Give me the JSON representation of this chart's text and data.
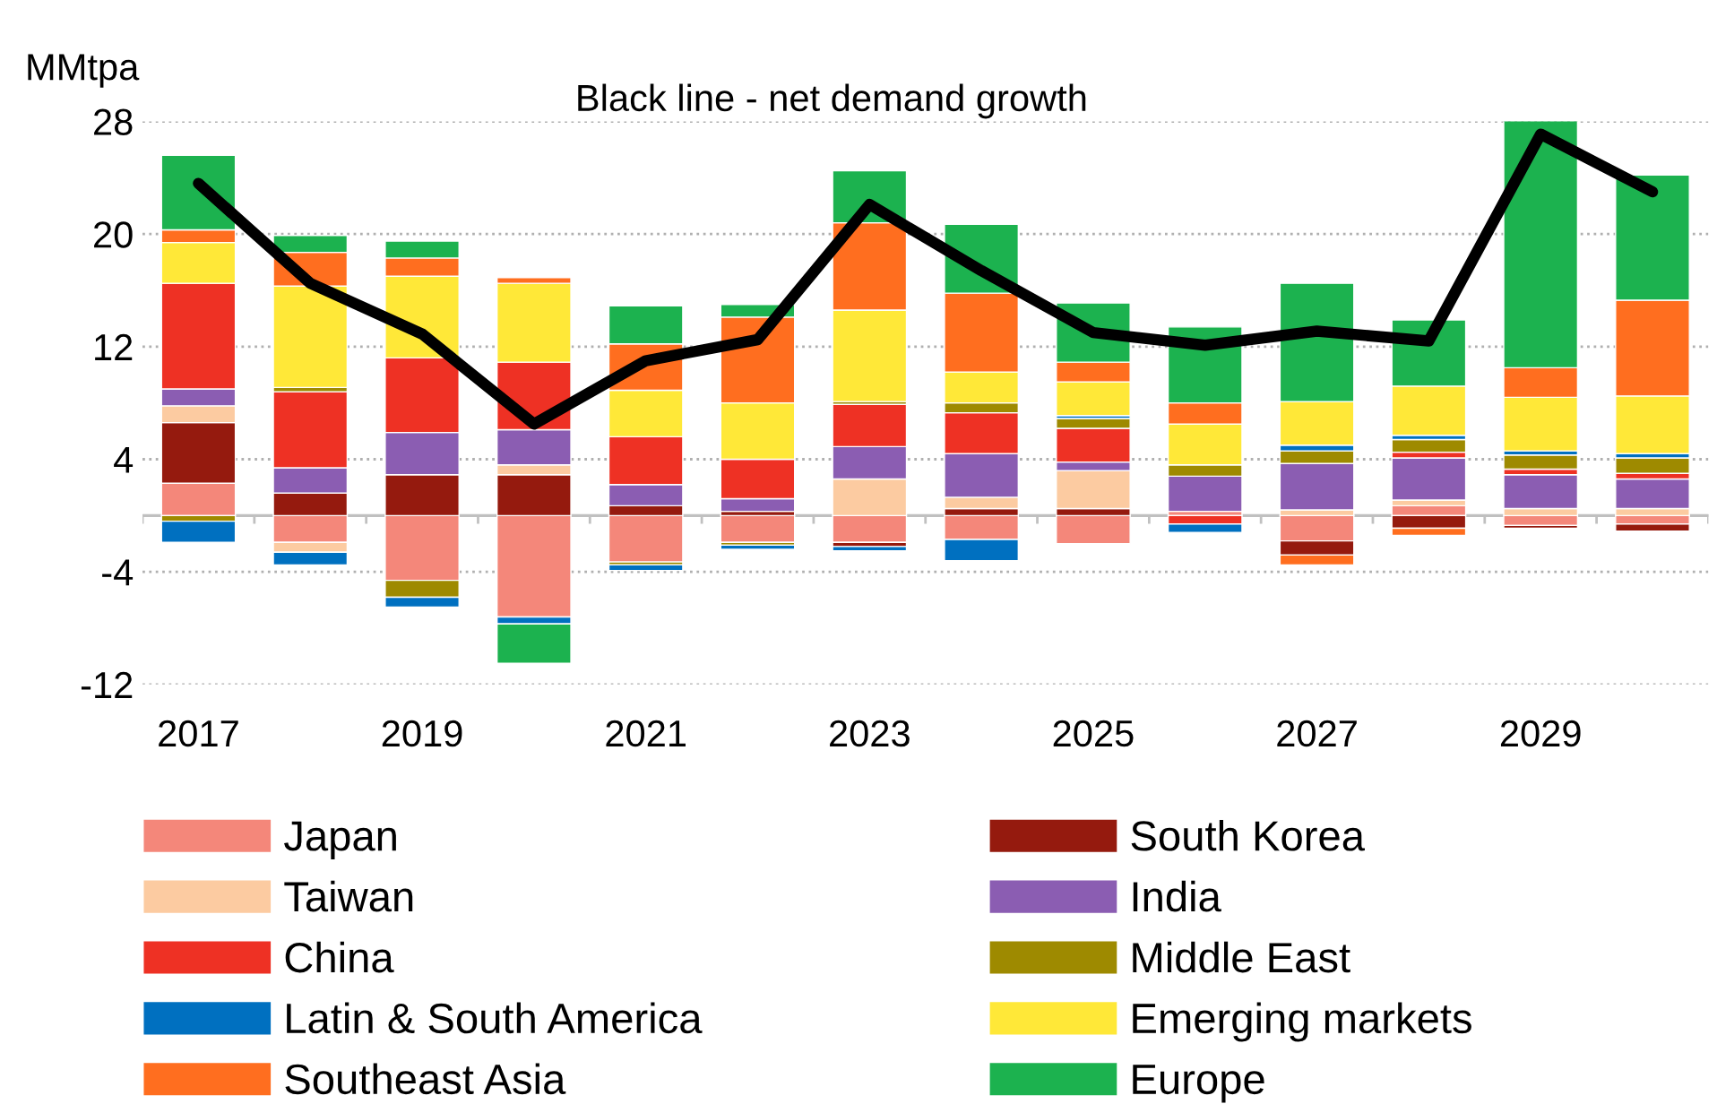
{
  "chart_data": {
    "type": "bar",
    "stacked": true,
    "title": "Black line - net demand growth",
    "ylabel": "MMtpa",
    "categories": [
      "2017",
      null,
      "2019",
      null,
      "2021",
      null,
      "2023",
      null,
      "2025",
      null,
      "2027",
      null,
      "2029",
      null
    ],
    "series": [
      {
        "name": "Japan",
        "color": "#f4877a",
        "values": [
          2.3,
          -1.9,
          -4.6,
          -7.2,
          -3.3,
          -1.9,
          -1.9,
          -1.7,
          -2.0,
          0.3,
          -1.8,
          0.7,
          -0.7,
          -0.6
        ]
      },
      {
        "name": "South Korea",
        "color": "#951a0e",
        "values": [
          4.3,
          1.6,
          2.9,
          2.9,
          0.7,
          0.3,
          -0.3,
          0.5,
          0.5,
          null,
          -1.0,
          -0.9,
          -0.2,
          -0.5
        ]
      },
      {
        "name": "Taiwan",
        "color": "#fccba1",
        "values": [
          1.2,
          -0.7,
          null,
          0.7,
          null,
          null,
          2.6,
          0.8,
          2.7,
          null,
          0.4,
          0.4,
          0.5,
          0.5
        ]
      },
      {
        "name": "India",
        "color": "#8b5db2",
        "values": [
          1.2,
          1.8,
          3.0,
          2.5,
          1.5,
          0.9,
          2.3,
          3.1,
          0.6,
          2.5,
          3.3,
          3.0,
          2.4,
          2.1
        ]
      },
      {
        "name": "China",
        "color": "#ee3124",
        "values": [
          7.5,
          5.4,
          5.3,
          4.8,
          3.4,
          2.8,
          3.0,
          2.9,
          2.4,
          -0.6,
          null,
          0.4,
          0.4,
          0.4
        ]
      },
      {
        "name": "Middle East",
        "color": "#9e8a00",
        "values": [
          -0.4,
          0.3,
          -1.2,
          null,
          -0.2,
          -0.2,
          0.2,
          0.7,
          0.7,
          0.8,
          0.9,
          0.9,
          1.0,
          1.1
        ]
      },
      {
        "name": "Latin & South America",
        "color": "#0070c0",
        "values": [
          -1.5,
          -0.9,
          -0.7,
          -0.5,
          -0.4,
          -0.3,
          -0.3,
          -1.5,
          0.2,
          -0.6,
          0.4,
          0.3,
          0.3,
          0.3
        ]
      },
      {
        "name": "Emerging markets",
        "color": "#ffe838",
        "values": [
          2.9,
          7.2,
          5.8,
          5.6,
          3.3,
          4.0,
          6.5,
          2.2,
          2.4,
          2.9,
          3.1,
          3.5,
          3.8,
          4.1
        ]
      },
      {
        "name": "Southeast Asia",
        "color": "#ff6e1f",
        "values": [
          0.9,
          2.4,
          1.3,
          0.4,
          3.3,
          6.1,
          6.2,
          5.6,
          1.4,
          1.5,
          -0.7,
          -0.5,
          2.1,
          6.8
        ]
      },
      {
        "name": "Europe",
        "color": "#1cb24f",
        "values": [
          5.3,
          1.2,
          1.2,
          -2.8,
          2.7,
          0.9,
          3.7,
          4.9,
          4.2,
          5.4,
          8.4,
          4.7,
          17.6,
          8.9
        ]
      },
      {
        "type": "line",
        "color": "#000000",
        "values": [
          23.6,
          16.5,
          12.9,
          6.5,
          11.0,
          12.5,
          22.1,
          17.4,
          13.0,
          12.1,
          13.1,
          12.4,
          27.1,
          23.0
        ]
      }
    ],
    "ylim": [
      -12,
      28
    ],
    "yticks": [
      -12,
      -4,
      4,
      12,
      20,
      28
    ],
    "grid": "y",
    "legend": "bottom",
    "marker": "none",
    "line_style": "solid"
  }
}
